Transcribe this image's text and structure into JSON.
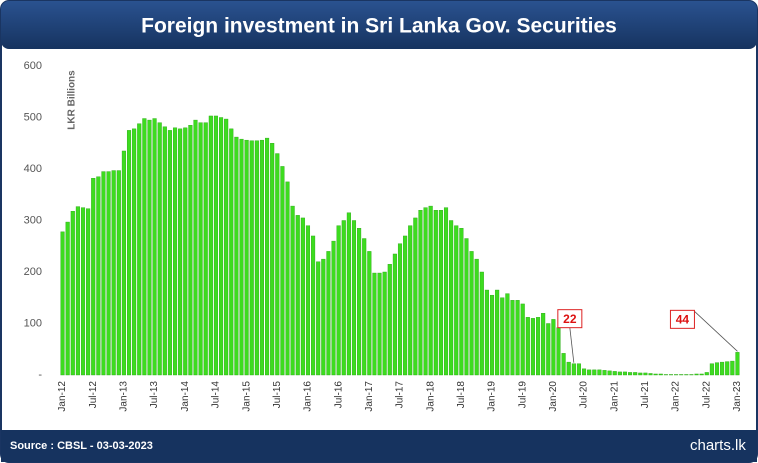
{
  "chart_data": {
    "type": "bar",
    "title": "Foreign investment in Sri Lanka Gov. Securities",
    "y_label": "LKR Billions",
    "source": "Source : CBSL - 03-03-2023",
    "logo": "charts.lk",
    "color": "#3ddc1f",
    "categories": [
      "Jan-12",
      null,
      null,
      null,
      null,
      null,
      "Jul-12",
      null,
      null,
      null,
      null,
      null,
      "Jan-13",
      null,
      null,
      null,
      null,
      null,
      "Jul-13",
      null,
      null,
      null,
      null,
      null,
      "Jan-14",
      null,
      null,
      null,
      null,
      null,
      "Jul-14",
      null,
      null,
      null,
      null,
      null,
      "Jan-15",
      null,
      null,
      null,
      null,
      null,
      "Jul-15",
      null,
      null,
      null,
      null,
      null,
      "Jan-16",
      null,
      null,
      null,
      null,
      null,
      "Jul-16",
      null,
      null,
      null,
      null,
      null,
      "Jan-17",
      null,
      null,
      null,
      null,
      null,
      "Jul-17",
      null,
      null,
      null,
      null,
      null,
      "Jan-18",
      null,
      null,
      null,
      null,
      null,
      "Jul-18",
      null,
      null,
      null,
      null,
      null,
      "Jan-19",
      null,
      null,
      null,
      null,
      null,
      "Jul-19",
      null,
      null,
      null,
      null,
      null,
      "Jan-20",
      null,
      null,
      null,
      null,
      null,
      "Jul-20",
      null,
      null,
      null,
      null,
      null,
      "Jan-21",
      null,
      null,
      null,
      null,
      null,
      "Jul-21",
      null,
      null,
      null,
      null,
      null,
      "Jan-22",
      null,
      null,
      null,
      null,
      null,
      "Jul-22",
      null,
      null,
      null,
      null,
      null,
      "Jan-23"
    ],
    "values": [
      278,
      297,
      318,
      327,
      325,
      323,
      382,
      385,
      395,
      395,
      397,
      397,
      435,
      475,
      478,
      488,
      498,
      495,
      498,
      490,
      482,
      475,
      480,
      478,
      480,
      485,
      495,
      490,
      490,
      503,
      503,
      500,
      497,
      478,
      462,
      458,
      456,
      455,
      455,
      456,
      460,
      450,
      430,
      405,
      375,
      328,
      310,
      305,
      290,
      270,
      220,
      225,
      240,
      260,
      290,
      300,
      315,
      300,
      285,
      265,
      240,
      198,
      198,
      200,
      215,
      235,
      255,
      270,
      290,
      305,
      320,
      325,
      328,
      320,
      320,
      325,
      300,
      290,
      285,
      265,
      240,
      225,
      200,
      165,
      155,
      165,
      150,
      158,
      145,
      145,
      138,
      112,
      110,
      112,
      120,
      100,
      108,
      92,
      42,
      25,
      22,
      22,
      12,
      10,
      10,
      10,
      9,
      8,
      7,
      6,
      6,
      5,
      5,
      4,
      4,
      3,
      2,
      2,
      1,
      1,
      1,
      1,
      1,
      1,
      2,
      2,
      5,
      22,
      24,
      25,
      26,
      27,
      44
    ],
    "value_labels": [
      null,
      null,
      null,
      null,
      null,
      null,
      null,
      null,
      null,
      null,
      null,
      null,
      null,
      null,
      null,
      null,
      null,
      null,
      null,
      null,
      null,
      null,
      null,
      null,
      null,
      null,
      null,
      null,
      null,
      null,
      null,
      null,
      null,
      null,
      null,
      null,
      null,
      null,
      null,
      null,
      null,
      null,
      null,
      null,
      null,
      null,
      null,
      null,
      null,
      null,
      null,
      null,
      null,
      null,
      null,
      null,
      null,
      null,
      null,
      null,
      null,
      null,
      null,
      null,
      null,
      null,
      null,
      null,
      null,
      null,
      null,
      null,
      null,
      null,
      null,
      null,
      null,
      null,
      null,
      null,
      null,
      null,
      null,
      null,
      null,
      null,
      null,
      null,
      null,
      null,
      null,
      null,
      null,
      null,
      null,
      null,
      null,
      null,
      null,
      null,
      "22",
      null,
      null,
      null,
      null,
      null,
      null,
      null,
      null,
      null,
      null,
      null,
      null,
      null,
      null,
      null,
      null,
      null,
      null,
      null,
      null,
      null,
      null,
      null,
      null,
      null,
      null,
      null,
      null,
      null,
      null,
      null,
      "44"
    ],
    "ylim": [
      0,
      600
    ],
    "yticks": [
      {
        "value": 0,
        "label": "-"
      },
      100,
      200,
      300,
      400,
      500,
      600
    ],
    "grid": false
  }
}
